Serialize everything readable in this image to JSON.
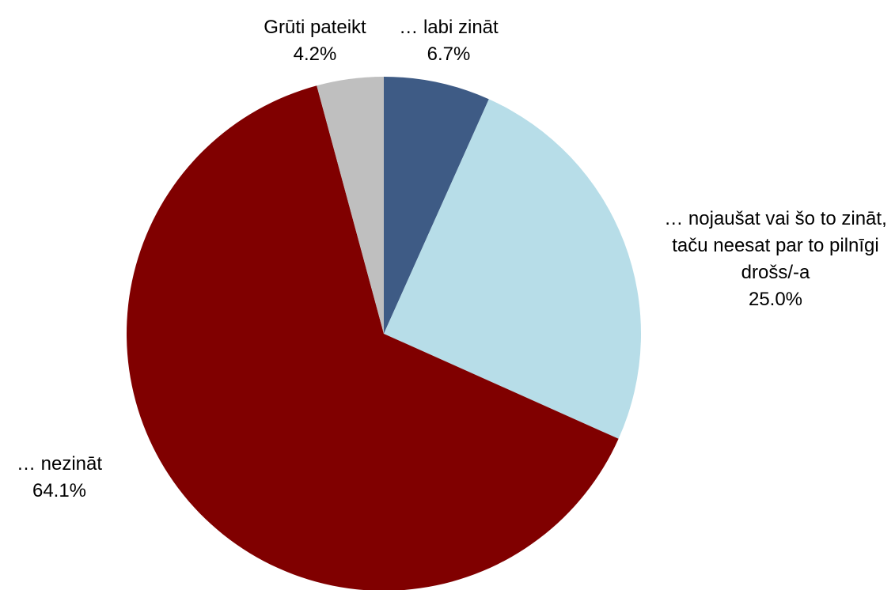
{
  "chart_data": {
    "type": "pie",
    "categories": [
      "… labi zināt",
      "… nojaušat vai šo to zināt, taču neesat par to pilnīgi drošs/-a",
      "… nezināt",
      "Grūti pateikt"
    ],
    "values": [
      6.7,
      25.0,
      64.1,
      4.2
    ],
    "value_labels": [
      "6.7%",
      "25.0%",
      "64.1%",
      "4.2%"
    ],
    "colors": [
      "#3e5b85",
      "#b7dde8",
      "#800000",
      "#bfbfbf"
    ]
  }
}
